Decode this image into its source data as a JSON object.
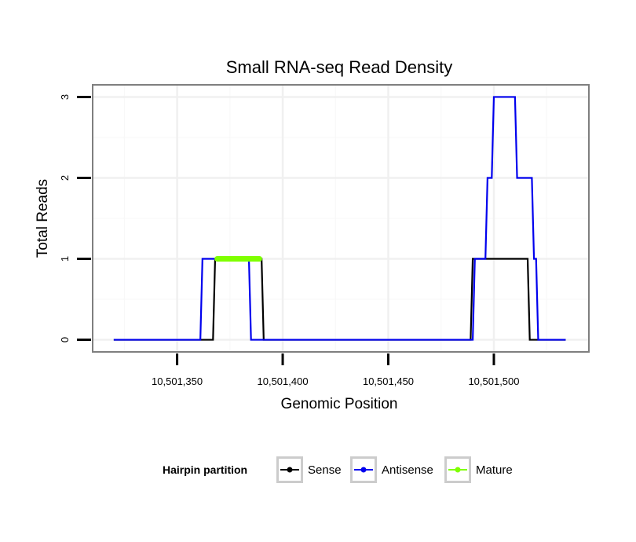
{
  "chart_data": {
    "type": "line",
    "title": "Small RNA-seq Read Density",
    "xlabel": "Genomic Position",
    "ylabel": "Total Reads",
    "xlim": [
      10501310,
      10501545
    ],
    "ylim": [
      -0.15,
      3.15
    ],
    "x_ticks": [
      10501350,
      10501400,
      10501450,
      10501500
    ],
    "x_tick_labels": [
      "10,501,350",
      "10,501,400",
      "10,501,450",
      "10,501,500"
    ],
    "y_ticks": [
      0,
      1,
      2,
      3
    ],
    "y_tick_labels": [
      "0",
      "1",
      "2",
      "3"
    ],
    "grid": true,
    "legend": {
      "title": "Hairpin partition",
      "position": "bottom",
      "entries": [
        {
          "name": "Sense",
          "color": "#000000"
        },
        {
          "name": "Antisense",
          "color": "#0000ee"
        },
        {
          "name": "Mature",
          "color": "#7fff00"
        }
      ]
    },
    "series": [
      {
        "name": "Sense",
        "color": "#000000",
        "x": [
          10501320,
          10501367,
          10501368,
          10501390,
          10501391,
          10501489,
          10501490,
          10501516,
          10501517,
          10501534
        ],
        "y": [
          0,
          0,
          1,
          1,
          0,
          0,
          1,
          1,
          0,
          0
        ]
      },
      {
        "name": "Antisense",
        "color": "#0000ee",
        "x": [
          10501320,
          10501361,
          10501362,
          10501384,
          10501385,
          10501490,
          10501491,
          10501496,
          10501497,
          10501499,
          10501500,
          10501510,
          10501511,
          10501518,
          10501519,
          10501520,
          10501521,
          10501534
        ],
        "y": [
          0,
          0,
          1,
          1,
          0,
          0,
          1,
          1,
          2,
          2,
          3,
          3,
          2,
          2,
          1,
          1,
          0,
          0
        ]
      },
      {
        "name": "Mature",
        "color": "#7fff00",
        "x": [
          10501369,
          10501389
        ],
        "y": [
          1,
          1
        ]
      }
    ]
  }
}
